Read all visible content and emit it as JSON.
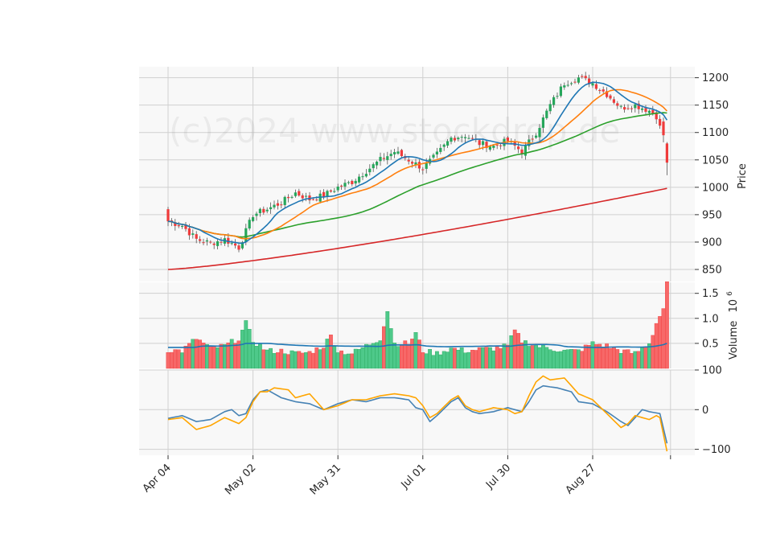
{
  "chart_data": {
    "type": "candlestick",
    "watermark": "(c)2024 www.stockdrop.de",
    "colors": {
      "up": "#26a65b",
      "up_volume": "#4ec98a",
      "down": "#ef3b3b",
      "down_volume": "#f76868",
      "ma_fast": "#1f77b4",
      "ma_mid": "#ff7f0e",
      "ma_slow": "#2ca02c",
      "ma_long": "#d62728",
      "volume_ma": "#1f77b4",
      "osc_a": "#4682b4",
      "osc_b": "#ffa500",
      "panel_bg": "#f8f8f8",
      "grid": "#d0d0d0"
    },
    "x_labels": [
      "Apr 04",
      "May 02",
      "May 31",
      "Jul 01",
      "Jul 30",
      "Aug 27"
    ],
    "price_panel": {
      "ylabel": "Price",
      "ylim": [
        828,
        1220
      ],
      "yticks": [
        850,
        900,
        950,
        1000,
        1050,
        1100,
        1150,
        1200
      ]
    },
    "volume_panel": {
      "ylabel": "Volume",
      "ylabel_exponent": "10",
      "ylabel_exponent_power": "6",
      "ylim": [
        0,
        1.72
      ],
      "yticks": [
        0.5,
        1.0,
        1.5
      ]
    },
    "oscillator_panel": {
      "ylim": [
        -115,
        100
      ],
      "yticks": [
        -100,
        0,
        100
      ]
    },
    "close_anchors": [
      [
        0,
        938
      ],
      [
        4,
        930
      ],
      [
        8,
        905
      ],
      [
        12,
        898
      ],
      [
        16,
        905
      ],
      [
        20,
        890
      ],
      [
        24,
        950
      ],
      [
        28,
        960
      ],
      [
        32,
        972
      ],
      [
        36,
        990
      ],
      [
        40,
        978
      ],
      [
        44,
        985
      ],
      [
        48,
        1000
      ],
      [
        52,
        1010
      ],
      [
        56,
        1030
      ],
      [
        60,
        1050
      ],
      [
        64,
        1065
      ],
      [
        68,
        1050
      ],
      [
        72,
        1035
      ],
      [
        76,
        1060
      ],
      [
        80,
        1090
      ],
      [
        84,
        1095
      ],
      [
        88,
        1080
      ],
      [
        92,
        1075
      ],
      [
        96,
        1085
      ],
      [
        100,
        1065
      ],
      [
        104,
        1100
      ],
      [
        108,
        1150
      ],
      [
        112,
        1190
      ],
      [
        116,
        1200
      ],
      [
        120,
        1190
      ],
      [
        124,
        1170
      ],
      [
        128,
        1145
      ],
      [
        132,
        1150
      ],
      [
        136,
        1140
      ],
      [
        138,
        1130
      ],
      [
        140,
        1095
      ],
      [
        141,
        1045
      ]
    ],
    "volume_anchors": [
      [
        0,
        0.37
      ],
      [
        4,
        0.35
      ],
      [
        8,
        0.6
      ],
      [
        12,
        0.4
      ],
      [
        16,
        0.45
      ],
      [
        20,
        0.6
      ],
      [
        22,
        0.9
      ],
      [
        24,
        0.55
      ],
      [
        28,
        0.35
      ],
      [
        32,
        0.35
      ],
      [
        36,
        0.3
      ],
      [
        40,
        0.32
      ],
      [
        44,
        0.45
      ],
      [
        46,
        0.65
      ],
      [
        48,
        0.35
      ],
      [
        52,
        0.3
      ],
      [
        56,
        0.45
      ],
      [
        60,
        0.6
      ],
      [
        62,
        1.15
      ],
      [
        64,
        0.5
      ],
      [
        68,
        0.5
      ],
      [
        70,
        0.7
      ],
      [
        72,
        0.35
      ],
      [
        76,
        0.3
      ],
      [
        80,
        0.4
      ],
      [
        84,
        0.35
      ],
      [
        88,
        0.38
      ],
      [
        92,
        0.4
      ],
      [
        96,
        0.45
      ],
      [
        98,
        0.75
      ],
      [
        100,
        0.55
      ],
      [
        104,
        0.45
      ],
      [
        108,
        0.4
      ],
      [
        112,
        0.35
      ],
      [
        116,
        0.35
      ],
      [
        120,
        0.5
      ],
      [
        124,
        0.45
      ],
      [
        128,
        0.35
      ],
      [
        132,
        0.3
      ],
      [
        136,
        0.5
      ],
      [
        138,
        0.9
      ],
      [
        140,
        1.2
      ],
      [
        141,
        1.68
      ]
    ],
    "osc_a_anchors": [
      [
        0,
        -22
      ],
      [
        4,
        -15
      ],
      [
        8,
        -30
      ],
      [
        12,
        -25
      ],
      [
        16,
        -5
      ],
      [
        18,
        0
      ],
      [
        20,
        -15
      ],
      [
        22,
        -10
      ],
      [
        24,
        25
      ],
      [
        26,
        45
      ],
      [
        28,
        50
      ],
      [
        32,
        30
      ],
      [
        36,
        20
      ],
      [
        40,
        15
      ],
      [
        44,
        0
      ],
      [
        48,
        15
      ],
      [
        52,
        25
      ],
      [
        56,
        20
      ],
      [
        60,
        30
      ],
      [
        64,
        30
      ],
      [
        68,
        25
      ],
      [
        70,
        5
      ],
      [
        72,
        0
      ],
      [
        74,
        -30
      ],
      [
        76,
        -15
      ],
      [
        80,
        20
      ],
      [
        82,
        30
      ],
      [
        84,
        5
      ],
      [
        86,
        -5
      ],
      [
        88,
        -10
      ],
      [
        92,
        -5
      ],
      [
        96,
        5
      ],
      [
        100,
        -5
      ],
      [
        102,
        20
      ],
      [
        104,
        50
      ],
      [
        106,
        60
      ],
      [
        110,
        55
      ],
      [
        114,
        45
      ],
      [
        116,
        20
      ],
      [
        120,
        15
      ],
      [
        124,
        -5
      ],
      [
        128,
        -30
      ],
      [
        130,
        -40
      ],
      [
        132,
        -20
      ],
      [
        134,
        0
      ],
      [
        136,
        -5
      ],
      [
        139,
        -10
      ],
      [
        141,
        -85
      ]
    ],
    "osc_b_anchors": [
      [
        0,
        -25
      ],
      [
        4,
        -20
      ],
      [
        8,
        -50
      ],
      [
        12,
        -40
      ],
      [
        16,
        -20
      ],
      [
        20,
        -35
      ],
      [
        22,
        -20
      ],
      [
        24,
        20
      ],
      [
        26,
        45
      ],
      [
        28,
        45
      ],
      [
        30,
        55
      ],
      [
        34,
        50
      ],
      [
        36,
        30
      ],
      [
        40,
        40
      ],
      [
        44,
        0
      ],
      [
        48,
        10
      ],
      [
        52,
        25
      ],
      [
        56,
        25
      ],
      [
        60,
        35
      ],
      [
        64,
        40
      ],
      [
        68,
        35
      ],
      [
        70,
        30
      ],
      [
        72,
        10
      ],
      [
        74,
        -20
      ],
      [
        76,
        -10
      ],
      [
        80,
        25
      ],
      [
        82,
        35
      ],
      [
        84,
        10
      ],
      [
        86,
        0
      ],
      [
        88,
        -5
      ],
      [
        92,
        5
      ],
      [
        96,
        0
      ],
      [
        98,
        -10
      ],
      [
        100,
        -5
      ],
      [
        102,
        35
      ],
      [
        104,
        70
      ],
      [
        106,
        85
      ],
      [
        108,
        75
      ],
      [
        112,
        80
      ],
      [
        114,
        60
      ],
      [
        116,
        40
      ],
      [
        120,
        25
      ],
      [
        124,
        -10
      ],
      [
        128,
        -45
      ],
      [
        130,
        -35
      ],
      [
        132,
        -15
      ],
      [
        136,
        -25
      ],
      [
        138,
        -15
      ],
      [
        139,
        -20
      ],
      [
        141,
        -105
      ]
    ]
  }
}
